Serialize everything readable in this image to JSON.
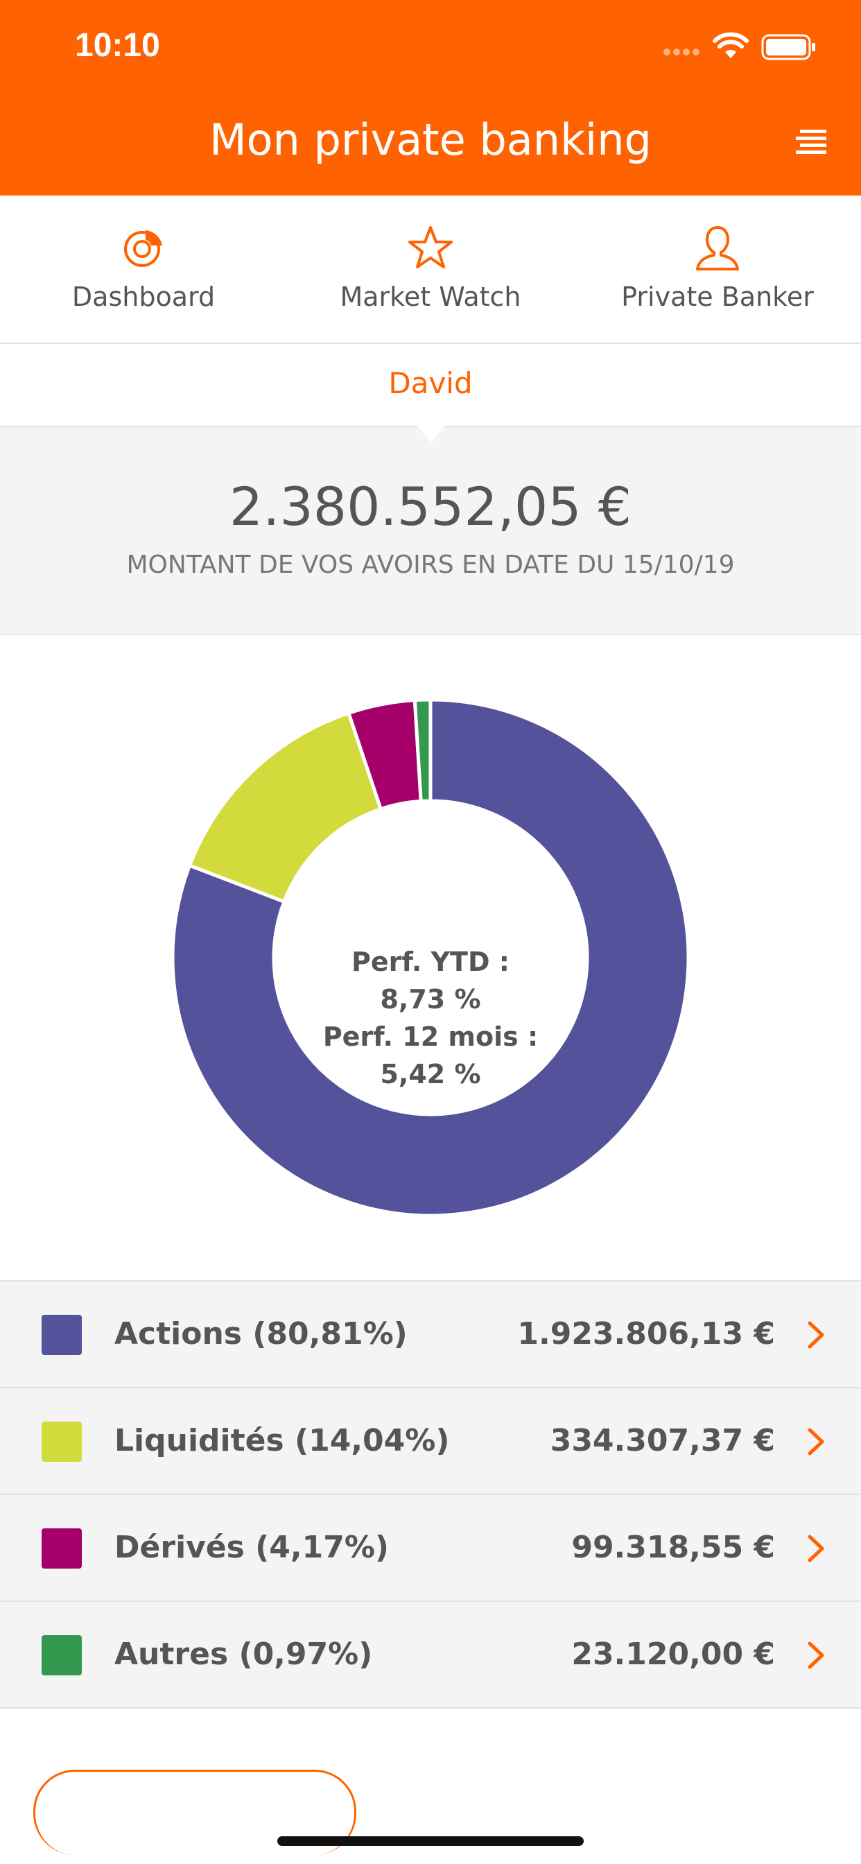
{
  "status": {
    "time": "10:10"
  },
  "header": {
    "title": "Mon private banking"
  },
  "nav": {
    "items": [
      {
        "label": "Dashboard",
        "icon": "dashboard-pie-icon"
      },
      {
        "label": "Market Watch",
        "icon": "star-icon"
      },
      {
        "label": "Private Banker",
        "icon": "person-icon"
      }
    ]
  },
  "client": {
    "name": "David"
  },
  "summary": {
    "amount": "2.380.552,05 €",
    "subtitle": "MONTANT DE VOS AVOIRS EN DATE DU 15/10/19"
  },
  "chart_data": {
    "type": "pie",
    "donut": true,
    "categories": [
      "Actions",
      "Liquidités",
      "Dérivés",
      "Autres"
    ],
    "values": [
      80.81,
      14.04,
      4.17,
      0.97
    ],
    "colors": [
      "#53529a",
      "#d3da3b",
      "#a5006a",
      "#34994f"
    ],
    "center_text": [
      "Perf. YTD :",
      "8,73 %",
      "Perf. 12 mois :",
      "5,42 %"
    ]
  },
  "legend": {
    "rows": [
      {
        "label": "Actions (80,81%)",
        "value": "1.923.806,13 €",
        "color": "#53529a"
      },
      {
        "label": "Liquidités (14,04%)",
        "value": "334.307,37 €",
        "color": "#d3da3b"
      },
      {
        "label": "Dérivés (4,17%)",
        "value": "99.318,55 €",
        "color": "#a5006a"
      },
      {
        "label": "Autres (0,97%)",
        "value": "23.120,00 €",
        "color": "#34994f"
      }
    ]
  },
  "colors": {
    "accent": "#ff6200"
  }
}
